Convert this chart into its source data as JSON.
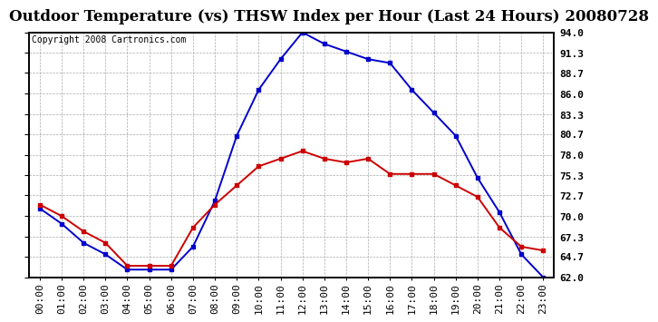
{
  "title": "Outdoor Temperature (vs) THSW Index per Hour (Last 24 Hours) 20080728",
  "copyright": "Copyright 2008 Cartronics.com",
  "hours": [
    "00:00",
    "01:00",
    "02:00",
    "03:00",
    "04:00",
    "05:00",
    "06:00",
    "07:00",
    "08:00",
    "09:00",
    "10:00",
    "11:00",
    "12:00",
    "13:00",
    "14:00",
    "15:00",
    "16:00",
    "17:00",
    "18:00",
    "19:00",
    "20:00",
    "21:00",
    "22:00",
    "23:00"
  ],
  "temp": [
    71.5,
    70.0,
    68.0,
    66.5,
    63.5,
    63.5,
    63.5,
    68.5,
    71.5,
    74.0,
    76.5,
    77.5,
    78.5,
    77.5,
    77.0,
    77.5,
    75.5,
    75.5,
    75.5,
    74.0,
    72.5,
    68.5,
    66.0,
    65.5
  ],
  "thsw": [
    71.0,
    69.0,
    66.5,
    65.0,
    63.0,
    63.0,
    63.0,
    66.0,
    72.0,
    80.5,
    86.5,
    90.5,
    94.0,
    92.5,
    91.5,
    90.5,
    90.0,
    86.5,
    83.5,
    80.5,
    75.0,
    70.5,
    65.0,
    62.0
  ],
  "temp_color": "#cc0000",
  "thsw_color": "#0000cc",
  "background_color": "#ffffff",
  "plot_bg_color": "#ffffff",
  "grid_color": "#aaaaaa",
  "ylim_min": 62.0,
  "ylim_max": 94.0,
  "yticks": [
    62.0,
    64.7,
    67.3,
    70.0,
    72.7,
    75.3,
    78.0,
    80.7,
    83.3,
    86.0,
    88.7,
    91.3,
    94.0
  ],
  "ytick_labels": [
    "62.0",
    "64.7",
    "67.3",
    "70.0",
    "72.7",
    "75.3",
    "78.0",
    "80.7",
    "83.3",
    "86.0",
    "88.7",
    "91.3",
    "94.0"
  ],
  "title_fontsize": 12,
  "copyright_fontsize": 7,
  "tick_fontsize": 8,
  "marker_size": 3.5,
  "line_width": 1.4
}
